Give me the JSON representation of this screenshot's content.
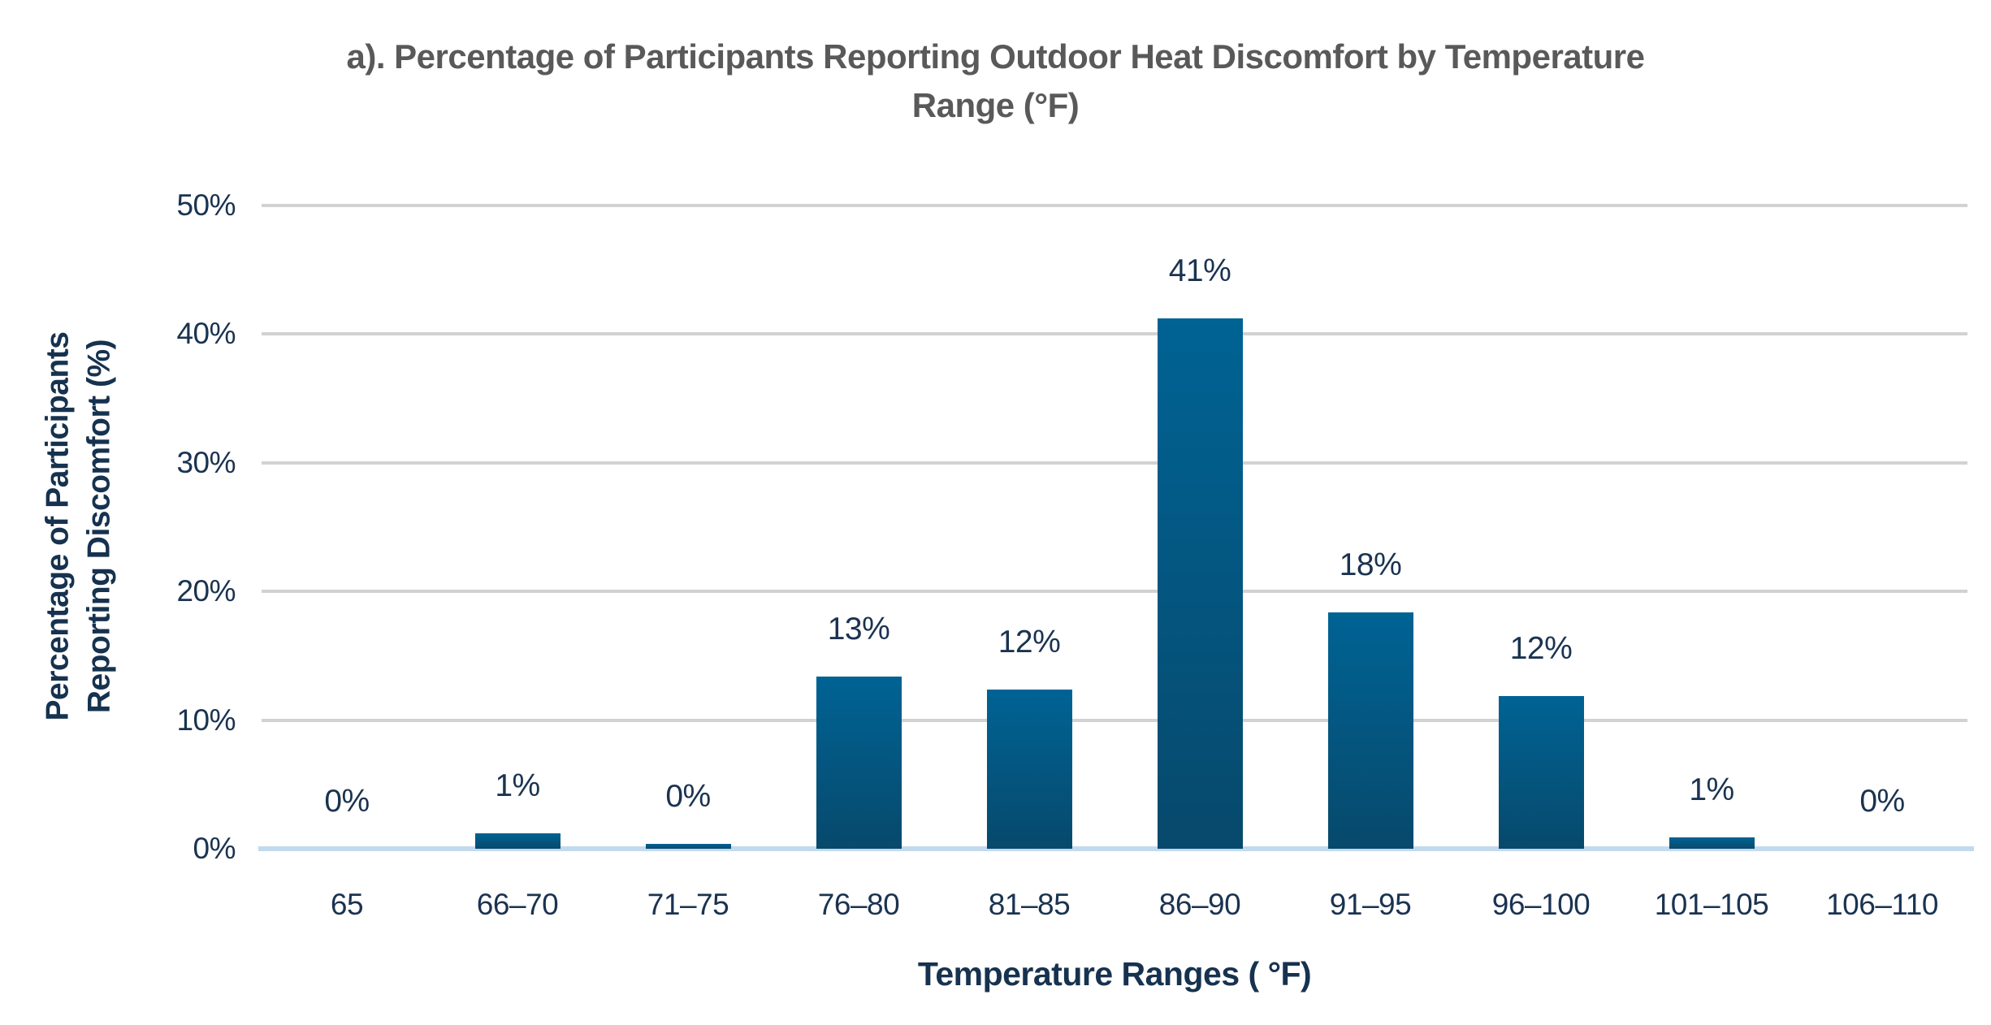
{
  "title": "a). Percentage of Participants Reporting Outdoor Heat Discomfort by Temperature Range (°F)",
  "chart_data": {
    "type": "bar",
    "categories": [
      "65",
      "66–70",
      "71–75",
      "76–80",
      "81–85",
      "86–90",
      "91–95",
      "96–100",
      "101–105",
      "106–110"
    ],
    "values": [
      0,
      1.2,
      0.4,
      13.4,
      12.4,
      41.2,
      18.4,
      11.9,
      0.9,
      0
    ],
    "value_labels": [
      "0%",
      "1%",
      "0%",
      "13%",
      "12%",
      "41%",
      "18%",
      "12%",
      "1%",
      "0%"
    ],
    "xlabel": "Temperature Ranges (  °F)",
    "ylabel_line1": "Percentage of Participants",
    "ylabel_line2": "Reporting Discomfort (%)",
    "ylim": [
      0,
      50
    ],
    "yticks": [
      "0%",
      "10%",
      "20%",
      "30%",
      "40%",
      "50%"
    ],
    "grid": true,
    "legend": "none",
    "colors": {
      "bar_top": "#006394",
      "bar_bottom": "#07496c",
      "axis_text": "#1a3350",
      "axis_title_text": "#16324f",
      "title_text": "#595959",
      "gridline": "#d2d2d2",
      "baseline": "#c3d9ee"
    }
  }
}
